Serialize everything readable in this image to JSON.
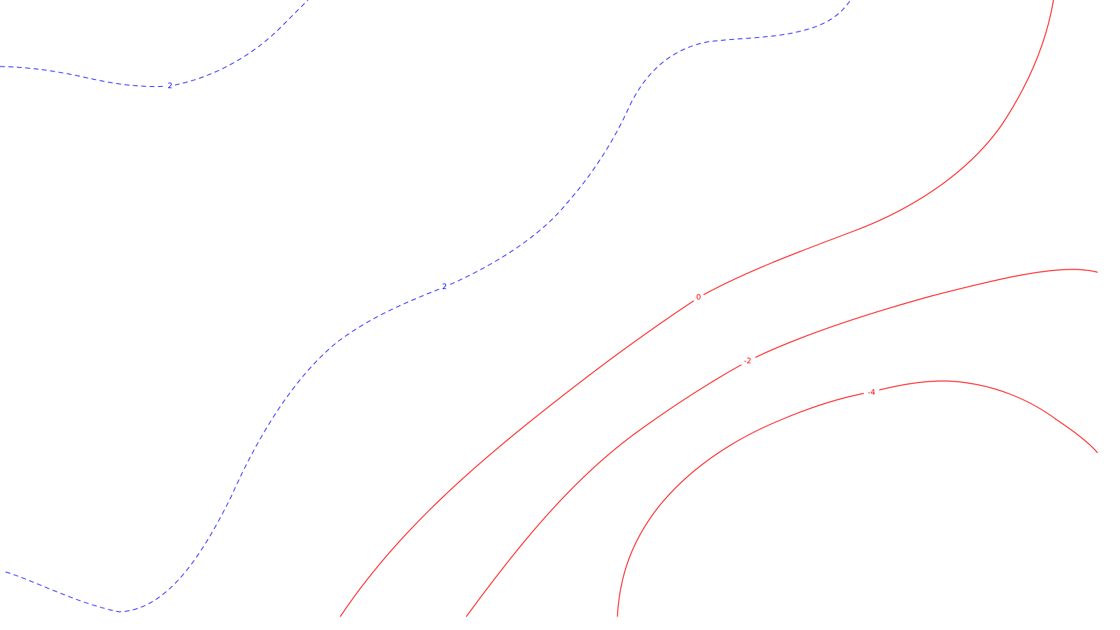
{
  "map": {
    "type": "contour-map",
    "contours": [
      {
        "id": "pos-upper",
        "value": 2,
        "label": "2",
        "style": "dashed",
        "color": "#0000ff"
      },
      {
        "id": "pos-lower",
        "value": 2,
        "label": "2",
        "style": "dashed",
        "color": "#0000ff"
      },
      {
        "id": "zero",
        "value": 0,
        "label": "0",
        "style": "solid",
        "color": "#ff0000"
      },
      {
        "id": "neg2",
        "value": -2,
        "label": "-2",
        "style": "solid",
        "color": "#ff0000"
      },
      {
        "id": "neg4",
        "value": -4,
        "label": "-4",
        "style": "solid",
        "color": "#ff0000"
      }
    ]
  }
}
